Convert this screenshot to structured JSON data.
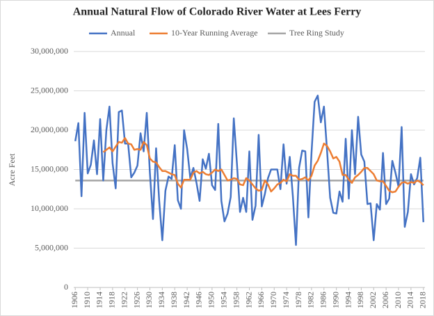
{
  "chart_data": {
    "type": "line",
    "title": "Annual  Natural Flow  of Colorado  River Water at Lees Ferry",
    "y_label": "Acre Feet",
    "x": [
      1906,
      1907,
      1908,
      1909,
      1910,
      1911,
      1912,
      1913,
      1914,
      1915,
      1916,
      1917,
      1918,
      1919,
      1920,
      1921,
      1922,
      1923,
      1924,
      1925,
      1926,
      1927,
      1928,
      1929,
      1930,
      1931,
      1932,
      1933,
      1934,
      1935,
      1936,
      1937,
      1938,
      1939,
      1940,
      1941,
      1942,
      1943,
      1944,
      1945,
      1946,
      1947,
      1948,
      1949,
      1950,
      1951,
      1952,
      1953,
      1954,
      1955,
      1956,
      1957,
      1958,
      1959,
      1960,
      1961,
      1962,
      1963,
      1964,
      1965,
      1966,
      1967,
      1968,
      1969,
      1970,
      1971,
      1972,
      1973,
      1974,
      1975,
      1976,
      1977,
      1978,
      1979,
      1980,
      1981,
      1982,
      1983,
      1984,
      1985,
      1986,
      1987,
      1988,
      1989,
      1990,
      1991,
      1992,
      1993,
      1994,
      1995,
      1996,
      1997,
      1998,
      1999,
      2000,
      2001,
      2002,
      2003,
      2004,
      2005,
      2006,
      2007,
      2008,
      2009,
      2010,
      2011,
      2012,
      2013,
      2014,
      2015,
      2016,
      2017,
      2018
    ],
    "xlim": [
      1905.5,
      2018.5
    ],
    "xticks": [
      1906,
      1910,
      1914,
      1918,
      1922,
      1926,
      1930,
      1934,
      1938,
      1942,
      1946,
      1950,
      1954,
      1958,
      1962,
      1966,
      1970,
      1974,
      1978,
      1982,
      1986,
      1990,
      1994,
      1998,
      2002,
      2006,
      2010,
      2014,
      2018
    ],
    "ylim": [
      0,
      30000000
    ],
    "yticks": [
      0,
      {
        "value": 5000000,
        "label": "5,000,000"
      },
      {
        "value": 10000000,
        "label": "10,000,000"
      },
      {
        "value": 15000000,
        "label": "15,000,000"
      },
      {
        "value": 20000000,
        "label": "20,000,000"
      },
      {
        "value": 25000000,
        "label": "25,000,000"
      },
      {
        "value": 30000000,
        "label": "30,000,000"
      }
    ],
    "grid": true,
    "legend": "top",
    "series": [
      {
        "name": "Annual",
        "color": "#4472c4",
        "values": [
          18600000,
          20900000,
          11600000,
          22200000,
          14500000,
          15600000,
          18700000,
          14400000,
          21400000,
          13600000,
          20000000,
          23000000,
          15800000,
          12600000,
          22300000,
          22500000,
          18300000,
          18300000,
          14000000,
          14600000,
          15500000,
          19600000,
          17300000,
          22200000,
          14600000,
          8700000,
          17700000,
          11000000,
          6000000,
          12300000,
          14100000,
          13800000,
          18100000,
          11100000,
          10000000,
          20000000,
          17600000,
          13900000,
          15200000,
          13300000,
          11000000,
          16300000,
          15100000,
          17000000,
          13000000,
          12400000,
          20800000,
          11000000,
          8400000,
          9400000,
          11500000,
          21500000,
          15800000,
          9600000,
          11400000,
          9600000,
          17300000,
          8600000,
          10400000,
          19400000,
          10300000,
          11900000,
          13900000,
          15000000,
          15000000,
          15000000,
          12500000,
          18200000,
          13200000,
          16600000,
          11600000,
          5400000,
          15200000,
          17400000,
          17300000,
          8900000,
          17100000,
          23600000,
          24400000,
          21000000,
          23000000,
          17400000,
          11400000,
          9500000,
          9400000,
          12200000,
          10900000,
          18900000,
          11300000,
          20000000,
          14400000,
          21700000,
          16900000,
          16000000,
          10600000,
          10700000,
          6000000,
          10600000,
          9900000,
          17100000,
          10600000,
          11300000,
          16100000,
          14600000,
          12800000,
          20400000,
          7700000,
          9600000,
          14400000,
          13100000,
          13900000,
          16500000,
          8300000
        ]
      },
      {
        "name": "10-Year Running Average",
        "color": "#ed7d31",
        "values": [
          null,
          null,
          null,
          null,
          null,
          null,
          null,
          null,
          null,
          17200000,
          17500000,
          17800000,
          17300000,
          17900000,
          18500000,
          18400000,
          19000000,
          18300000,
          18200000,
          17500000,
          17600000,
          17500000,
          18500000,
          18100000,
          16400000,
          16000000,
          15900000,
          15300000,
          14800000,
          14800000,
          14600000,
          14400000,
          14300000,
          13200000,
          12700000,
          13700000,
          13700000,
          13700000,
          14600000,
          14800000,
          14500000,
          14700000,
          14400000,
          14300000,
          14600000,
          15000000,
          14800000,
          15000000,
          14300000,
          13600000,
          13700000,
          13900000,
          13800000,
          13100000,
          13000000,
          13900000,
          13600000,
          13100000,
          12600000,
          12300000,
          12400000,
          13600000,
          13100000,
          12200000,
          12600000,
          13100000,
          13300000,
          13700000,
          13500000,
          14400000,
          14200000,
          14200000,
          13700000,
          13800000,
          14000000,
          13600000,
          14200000,
          15500000,
          16100000,
          17100000,
          18300000,
          18000000,
          17300000,
          16400000,
          16600000,
          16000000,
          14300000,
          14300000,
          13700000,
          13300000,
          14000000,
          14300000,
          14700000,
          15200000,
          15200000,
          14800000,
          14400000,
          13600000,
          13500000,
          13500000,
          12900000,
          12300000,
          12100000,
          12200000,
          12800000,
          13300000,
          13400000,
          13200000,
          13400000,
          13300000,
          13600000,
          13400000,
          13000000
        ]
      },
      {
        "name": "Tree Ring Study",
        "color": "#a5a5a5",
        "values": [
          13600000,
          13600000,
          13600000,
          13600000,
          13600000,
          13600000,
          13600000,
          13600000,
          13600000,
          13600000,
          13600000,
          13600000,
          13600000,
          13600000,
          13600000,
          13600000,
          13600000,
          13600000,
          13600000,
          13600000,
          13600000,
          13600000,
          13600000,
          13600000,
          13600000,
          13600000,
          13600000,
          13600000,
          13600000,
          13600000,
          13600000,
          13600000,
          13600000,
          13600000,
          13600000,
          13600000,
          13600000,
          13600000,
          13600000,
          13600000,
          13600000,
          13600000,
          13600000,
          13600000,
          13600000,
          13600000,
          13600000,
          13600000,
          13600000,
          13600000,
          13600000,
          13600000,
          13600000,
          13600000,
          13600000,
          13600000,
          13600000,
          13600000,
          13600000,
          13600000,
          13600000,
          13600000,
          13600000,
          13600000,
          13600000,
          13600000,
          13600000,
          13600000,
          13600000,
          13600000,
          13600000,
          13600000,
          13600000,
          13600000,
          13600000,
          13600000,
          13600000,
          13600000,
          13600000,
          13600000,
          13600000,
          13600000,
          13600000,
          13600000,
          13600000,
          13600000,
          13600000,
          13600000,
          13600000,
          13600000,
          13600000,
          13600000,
          13600000,
          13600000,
          13600000,
          13600000,
          13600000,
          13600000,
          13600000,
          13600000,
          13600000,
          13600000,
          13600000,
          13600000,
          13600000,
          13600000,
          13600000,
          13600000,
          13600000,
          13600000,
          13600000,
          13600000,
          13600000
        ]
      }
    ]
  }
}
